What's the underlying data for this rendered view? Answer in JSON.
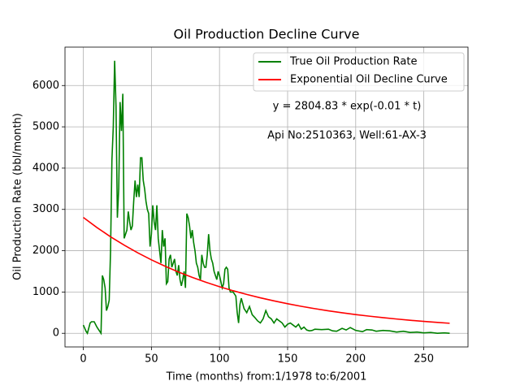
{
  "chart_data": {
    "type": "line",
    "title": "Oil Production Decline Curve",
    "x_label": "Time (months) from:1/1978 to:6/2001",
    "y_label": "Oil Production Rate (bbl/month)",
    "annotations": [
      "y = 2804.83 * exp(-0.01 * t)",
      "Api No:2510363, Well:61-AX-3"
    ],
    "xlim": [
      -13.45,
      282.45
    ],
    "ylim": [
      -330,
      6930
    ],
    "xticks": [
      0,
      50,
      100,
      150,
      200,
      250
    ],
    "yticks": [
      0,
      1000,
      2000,
      3000,
      4000,
      5000,
      6000
    ],
    "grid": true,
    "legend": "upper right",
    "series": [
      {
        "name": "True Oil Production Rate",
        "color": "#008000",
        "x": [
          0,
          2,
          3,
          5,
          6,
          8,
          10,
          12,
          13,
          14,
          15,
          16,
          17,
          18,
          19,
          20,
          21,
          22,
          23,
          24,
          25,
          26,
          27,
          28,
          29,
          30,
          31,
          32,
          33,
          34,
          35,
          36,
          37,
          38,
          39,
          40,
          41,
          42,
          43,
          44,
          45,
          46,
          47,
          48,
          49,
          50,
          51,
          52,
          53,
          54,
          55,
          56,
          57,
          58,
          59,
          60,
          61,
          62,
          63,
          64,
          65,
          66,
          67,
          68,
          69,
          70,
          71,
          72,
          73,
          74,
          75,
          76,
          77,
          78,
          79,
          80,
          81,
          82,
          83,
          84,
          85,
          86,
          87,
          88,
          89,
          90,
          91,
          92,
          93,
          94,
          95,
          96,
          97,
          98,
          99,
          100,
          101,
          102,
          103,
          104,
          105,
          106,
          107,
          108,
          110,
          112,
          113,
          114,
          115,
          116,
          118,
          120,
          122,
          124,
          126,
          128,
          130,
          132,
          134,
          136,
          138,
          140,
          142,
          144,
          146,
          148,
          150,
          152,
          154,
          156,
          158,
          160,
          162,
          164,
          166,
          168,
          170,
          175,
          180,
          183,
          186,
          190,
          193,
          196,
          200,
          205,
          208,
          212,
          215,
          220,
          225,
          230,
          235,
          240,
          245,
          250,
          255,
          260,
          265,
          269
        ],
        "values": [
          200,
          50,
          0,
          250,
          280,
          280,
          150,
          50,
          0,
          1400,
          1300,
          1100,
          550,
          650,
          800,
          2000,
          4200,
          5000,
          6600,
          5500,
          2800,
          3500,
          5600,
          4900,
          5800,
          2300,
          2400,
          2500,
          2950,
          2700,
          2500,
          2600,
          3200,
          3700,
          3300,
          3600,
          3300,
          4250,
          4250,
          3700,
          3500,
          3200,
          3000,
          2900,
          2100,
          2400,
          3100,
          2700,
          2500,
          3100,
          2300,
          2000,
          1700,
          2500,
          2100,
          2300,
          1200,
          1250,
          1800,
          1900,
          1600,
          1700,
          1800,
          1500,
          1400,
          1650,
          1300,
          1150,
          1300,
          1500,
          1100,
          2900,
          2800,
          2600,
          2300,
          2500,
          2200,
          2000,
          1700,
          1600,
          1400,
          1300,
          1900,
          1700,
          1600,
          1600,
          1900,
          2400,
          2000,
          1800,
          1700,
          1500,
          1400,
          1300,
          1500,
          1400,
          1250,
          1100,
          1200,
          1550,
          1600,
          1550,
          1100,
          1000,
          1000,
          900,
          500,
          250,
          700,
          850,
          600,
          500,
          650,
          450,
          380,
          300,
          250,
          350,
          550,
          400,
          350,
          250,
          350,
          300,
          250,
          150,
          220,
          250,
          200,
          150,
          220,
          100,
          150,
          80,
          60,
          70,
          100,
          90,
          100,
          60,
          50,
          120,
          80,
          140,
          70,
          40,
          90,
          80,
          50,
          70,
          60,
          30,
          50,
          20,
          30,
          10,
          20,
          0,
          10,
          0
        ]
      },
      {
        "name": "Exponential Oil Decline Curve",
        "color": "#ff0000",
        "x": [
          0,
          10,
          20,
          30,
          40,
          50,
          60,
          70,
          80,
          90,
          100,
          110,
          120,
          130,
          140,
          150,
          160,
          170,
          180,
          190,
          200,
          210,
          220,
          230,
          240,
          250,
          260,
          269
        ],
        "values": [
          2805,
          2561,
          2338,
          2135,
          1949,
          1779,
          1625,
          1483,
          1354,
          1237,
          1129,
          1031,
          941,
          859,
          785,
          716,
          654,
          597,
          545,
          498,
          454,
          415,
          379,
          346,
          316,
          288,
          263,
          243
        ]
      }
    ]
  }
}
